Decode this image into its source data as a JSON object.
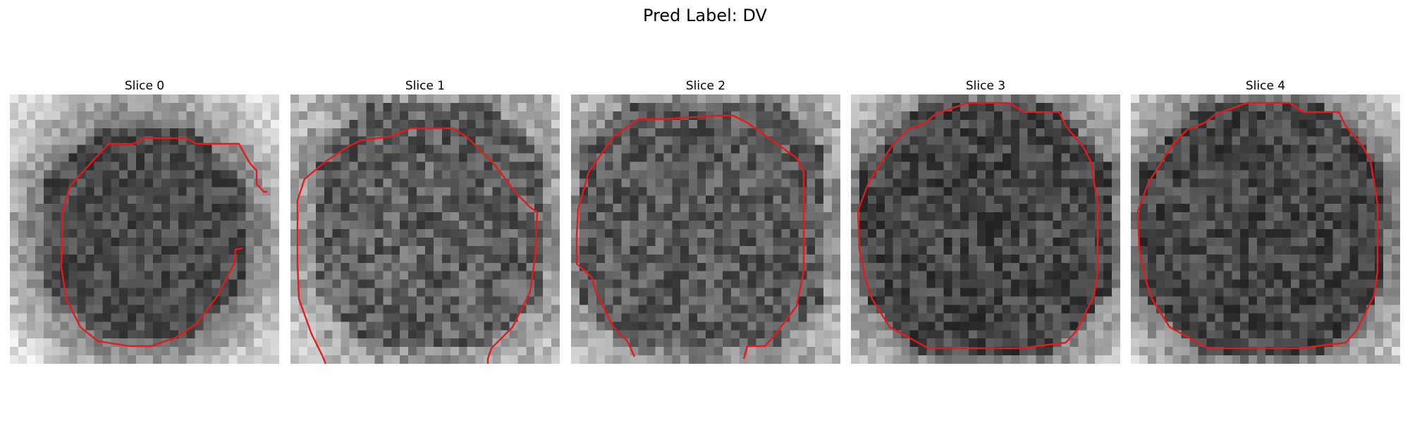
{
  "figure": {
    "title": "Pred Label: DV"
  },
  "panels": [
    {
      "title": "Slice 0"
    },
    {
      "title": "Slice 1"
    },
    {
      "title": "Slice 2"
    },
    {
      "title": "Slice 3"
    },
    {
      "title": "Slice 4"
    }
  ],
  "colors": {
    "contour": "#e41a1c"
  }
}
